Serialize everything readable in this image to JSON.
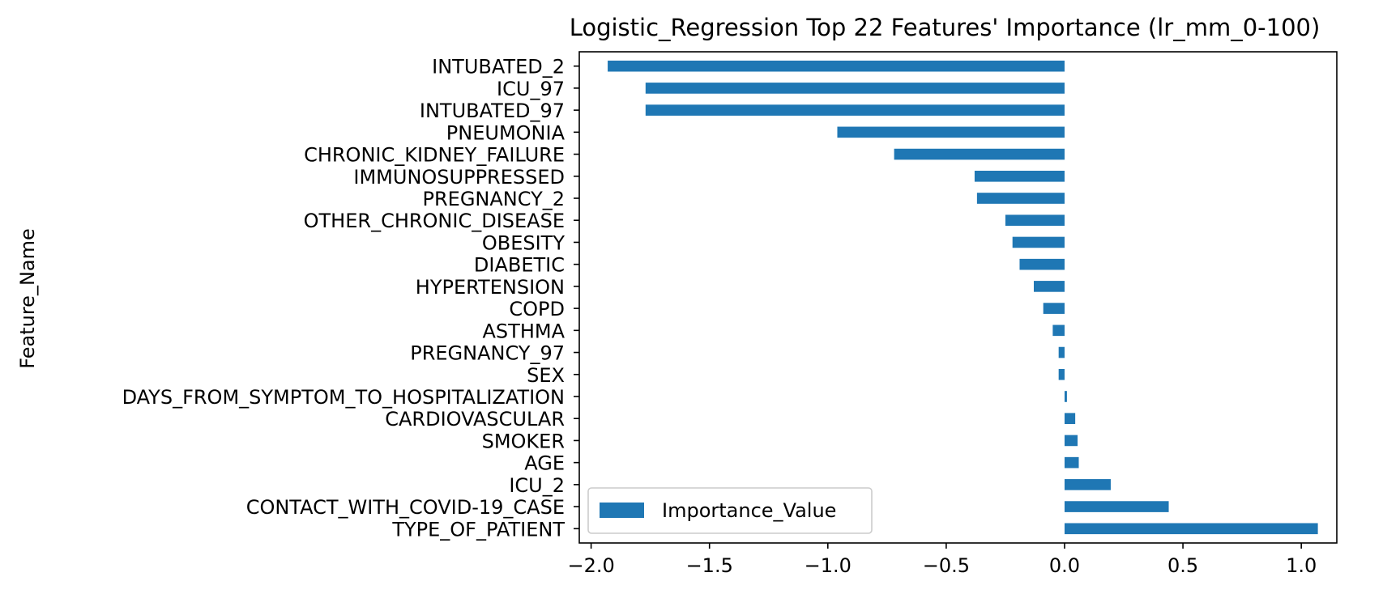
{
  "chart_data": {
    "type": "bar",
    "orientation": "horizontal",
    "title": "Logistic_Regression Top 22 Features' Importance (lr_mm_0-100)",
    "xlabel": "",
    "ylabel": "Feature_Name",
    "xlim": [
      -2.05,
      1.15
    ],
    "xticks": [
      -2.0,
      -1.5,
      -1.0,
      -0.5,
      0.0,
      0.5,
      1.0
    ],
    "xtick_labels": [
      "−2.0",
      "−1.5",
      "−1.0",
      "−0.5",
      "0.0",
      "0.5",
      "1.0"
    ],
    "grid": false,
    "legend_position": "lower-left",
    "bar_color": "#1f77b4",
    "categories": [
      "INTUBATED_2",
      "ICU_97",
      "INTUBATED_97",
      "PNEUMONIA",
      "CHRONIC_KIDNEY_FAILURE",
      "IMMUNOSUPPRESSED",
      "PREGNANCY_2",
      "OTHER_CHRONIC_DISEASE",
      "OBESITY",
      "DIABETIC",
      "HYPERTENSION",
      "COPD",
      "ASTHMA",
      "PREGNANCY_97",
      "SEX",
      "DAYS_FROM_SYMPTOM_TO_HOSPITALIZATION",
      "CARDIOVASCULAR",
      "SMOKER",
      "AGE",
      "ICU_2",
      "CONTACT_WITH_COVID-19_CASE",
      "TYPE_OF_PATIENT"
    ],
    "series": [
      {
        "name": "Importance_Value",
        "values": [
          -1.93,
          -1.77,
          -1.77,
          -0.96,
          -0.72,
          -0.38,
          -0.37,
          -0.25,
          -0.22,
          -0.19,
          -0.13,
          -0.09,
          -0.05,
          -0.025,
          -0.025,
          0.01,
          0.045,
          0.055,
          0.06,
          0.195,
          0.44,
          1.07
        ]
      }
    ]
  }
}
